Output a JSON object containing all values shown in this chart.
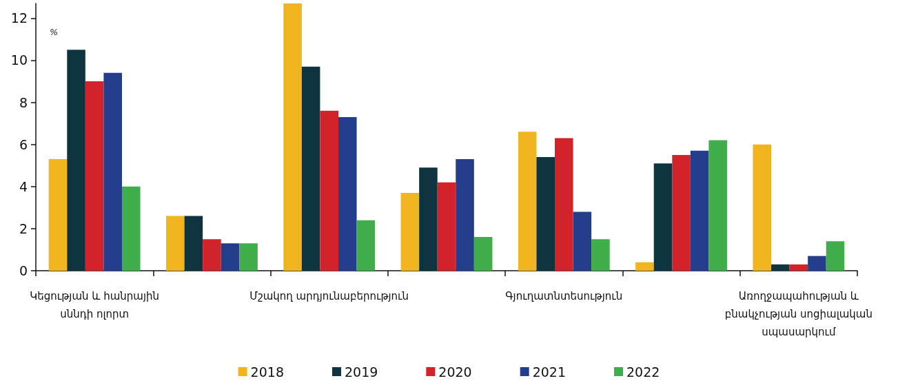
{
  "chart_data": {
    "type": "bar",
    "ylabel": "%",
    "categories": [
      "Կեցության և հանրային սննդի ոլորտ",
      null,
      "Մշակող արդյունաբերություն",
      null,
      "Գյուղատնտեսություն",
      null,
      "Առողջապահության և բնակչության սոցիալական սպասարկում"
    ],
    "series": [
      {
        "name": "2018",
        "color": "#f0b41e",
        "values": [
          5.3,
          2.6,
          12.7,
          3.7,
          6.6,
          0.4,
          6.0
        ]
      },
      {
        "name": "2019",
        "color": "#0e343f",
        "values": [
          10.5,
          2.6,
          9.7,
          4.9,
          5.4,
          5.1,
          0.3
        ]
      },
      {
        "name": "2020",
        "color": "#d2232a",
        "values": [
          9.0,
          1.5,
          7.6,
          4.2,
          6.3,
          5.5,
          0.3
        ]
      },
      {
        "name": "2021",
        "color": "#253e8c",
        "values": [
          9.4,
          1.3,
          7.3,
          5.3,
          2.8,
          5.7,
          0.7
        ]
      },
      {
        "name": "2022",
        "color": "#40ae4a",
        "values": [
          4.0,
          1.3,
          2.4,
          1.6,
          1.5,
          6.2,
          1.4
        ]
      }
    ],
    "ylim": [
      0,
      12.7
    ],
    "yticks": [
      0,
      2,
      4,
      6,
      8,
      10,
      12
    ],
    "legend": "bottom"
  }
}
